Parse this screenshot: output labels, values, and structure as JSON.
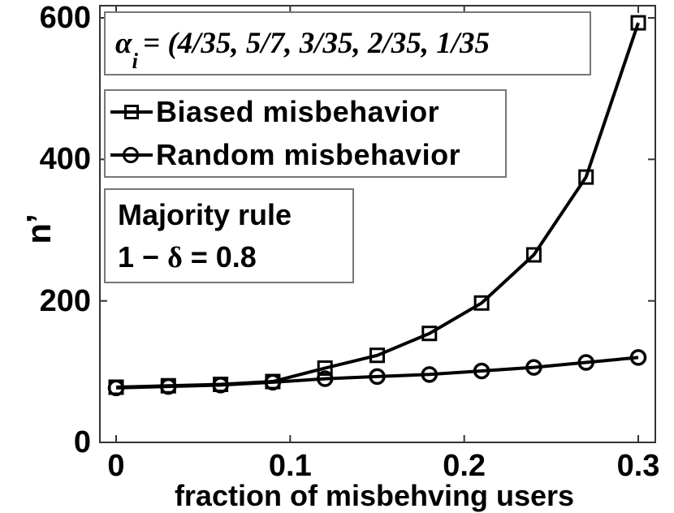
{
  "figure": {
    "background": "#ffffff",
    "curve_color": "#000000",
    "axis_color": "#333333",
    "annotation_border_color": "#777777"
  },
  "chart_data": {
    "type": "line",
    "title": "",
    "xlabel": "fraction of misbehving users",
    "ylabel": "n’",
    "xlim": [
      0,
      0.3
    ],
    "ylim": [
      0,
      600
    ],
    "x_ticks": [
      "0",
      "0.1",
      "0.2",
      "0.3"
    ],
    "x_tick_values": [
      0,
      0.1,
      0.2,
      0.3
    ],
    "y_ticks": [
      "0",
      "200",
      "400",
      "600"
    ],
    "y_tick_values": [
      0,
      200,
      400,
      600
    ],
    "grid": false,
    "legend_position": "upper-left",
    "x": [
      0,
      0.03,
      0.06,
      0.09,
      0.12,
      0.15,
      0.18,
      0.21,
      0.24,
      0.27,
      0.3
    ],
    "series": [
      {
        "name": "Biased misbehavior",
        "marker": "square",
        "values": [
          78,
          80,
          82,
          86,
          105,
          123,
          154,
          197,
          265,
          375,
          593
        ]
      },
      {
        "name": "Random misbehavior",
        "marker": "circle",
        "values": [
          77,
          79,
          81,
          85,
          90,
          93,
          96,
          101,
          106,
          113,
          120
        ]
      }
    ]
  },
  "annotations": {
    "alpha": {
      "symbol": "α",
      "subscript": "i",
      "rest": "= (4/35, 5/7, 3/35, 2/35, 1/35"
    },
    "majority": {
      "line1": "Majority rule",
      "line2_pre": "1 − ",
      "line2_delta": "δ",
      "line2_post": " = 0.8"
    }
  }
}
